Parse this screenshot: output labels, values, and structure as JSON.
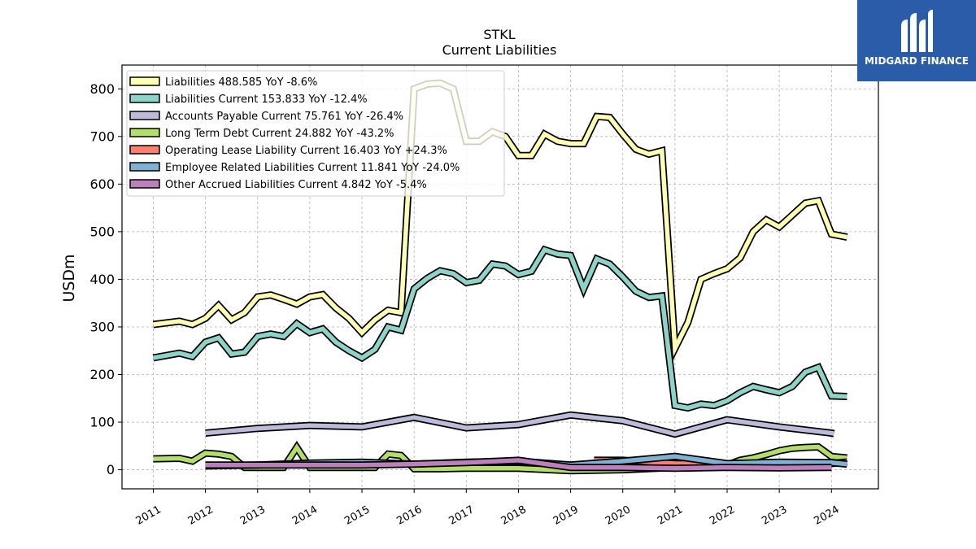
{
  "chart_data": {
    "type": "line",
    "title": "STKL",
    "subtitle": "Current  Liabilities",
    "ylabel": "USDm",
    "xlabel": "",
    "ylim": [
      -40,
      850
    ],
    "xlim": [
      2010.4,
      2024.9
    ],
    "yticks": [
      0,
      100,
      200,
      300,
      400,
      500,
      600,
      700,
      800
    ],
    "xticks": [
      "2011",
      "2012",
      "2013",
      "2014",
      "2015",
      "2016",
      "2017",
      "2018",
      "2019",
      "2020",
      "2021",
      "2022",
      "2023",
      "2024"
    ],
    "grid": true,
    "legend_position": "top-left",
    "series": [
      {
        "name": "Liabilities",
        "legend": "Liabilities  488.585 YoY -8.6%",
        "color": "#ffffb3",
        "points": [
          [
            2011.0,
            305
          ],
          [
            2011.5,
            312
          ],
          [
            2011.75,
            305
          ],
          [
            2012.0,
            318
          ],
          [
            2012.25,
            345
          ],
          [
            2012.5,
            315
          ],
          [
            2012.75,
            330
          ],
          [
            2013.0,
            363
          ],
          [
            2013.25,
            367
          ],
          [
            2013.5,
            358
          ],
          [
            2013.75,
            348
          ],
          [
            2014.0,
            363
          ],
          [
            2014.25,
            368
          ],
          [
            2014.5,
            340
          ],
          [
            2014.75,
            318
          ],
          [
            2015.0,
            288
          ],
          [
            2015.25,
            315
          ],
          [
            2015.5,
            335
          ],
          [
            2015.75,
            330
          ],
          [
            2016.0,
            800
          ],
          [
            2016.25,
            810
          ],
          [
            2016.5,
            812
          ],
          [
            2016.75,
            800
          ],
          [
            2017.0,
            690
          ],
          [
            2017.25,
            690
          ],
          [
            2017.5,
            710
          ],
          [
            2017.75,
            700
          ],
          [
            2018.0,
            660
          ],
          [
            2018.25,
            660
          ],
          [
            2018.5,
            705
          ],
          [
            2018.75,
            690
          ],
          [
            2019.0,
            685
          ],
          [
            2019.25,
            685
          ],
          [
            2019.5,
            742
          ],
          [
            2019.75,
            740
          ],
          [
            2020.0,
            705
          ],
          [
            2020.25,
            673
          ],
          [
            2020.5,
            663
          ],
          [
            2020.75,
            670
          ],
          [
            2021.0,
            255
          ],
          [
            2021.25,
            310
          ],
          [
            2021.5,
            400
          ],
          [
            2021.75,
            412
          ],
          [
            2022.0,
            422
          ],
          [
            2022.25,
            445
          ],
          [
            2022.5,
            500
          ],
          [
            2022.75,
            525
          ],
          [
            2023.0,
            510
          ],
          [
            2023.25,
            535
          ],
          [
            2023.5,
            560
          ],
          [
            2023.75,
            565
          ],
          [
            2024.0,
            495
          ],
          [
            2024.3,
            488.585
          ]
        ]
      },
      {
        "name": "Liabilities Current",
        "legend": "Liabilities Current  153.833 YoY -12.4%",
        "color": "#8dd3c7",
        "points": [
          [
            2011.0,
            235
          ],
          [
            2011.5,
            245
          ],
          [
            2011.75,
            238
          ],
          [
            2012.0,
            268
          ],
          [
            2012.25,
            277
          ],
          [
            2012.5,
            243
          ],
          [
            2012.75,
            247
          ],
          [
            2013.0,
            280
          ],
          [
            2013.25,
            285
          ],
          [
            2013.5,
            280
          ],
          [
            2013.75,
            307
          ],
          [
            2014.0,
            288
          ],
          [
            2014.25,
            296
          ],
          [
            2014.5,
            268
          ],
          [
            2014.75,
            250
          ],
          [
            2015.0,
            235
          ],
          [
            2015.25,
            253
          ],
          [
            2015.5,
            300
          ],
          [
            2015.75,
            293
          ],
          [
            2016.0,
            380
          ],
          [
            2016.25,
            402
          ],
          [
            2016.5,
            418
          ],
          [
            2016.75,
            412
          ],
          [
            2017.0,
            393
          ],
          [
            2017.25,
            398
          ],
          [
            2017.5,
            432
          ],
          [
            2017.75,
            428
          ],
          [
            2018.0,
            410
          ],
          [
            2018.25,
            417
          ],
          [
            2018.5,
            462
          ],
          [
            2018.75,
            453
          ],
          [
            2019.0,
            450
          ],
          [
            2019.25,
            380
          ],
          [
            2019.5,
            443
          ],
          [
            2019.75,
            432
          ],
          [
            2020.0,
            405
          ],
          [
            2020.25,
            375
          ],
          [
            2020.5,
            362
          ],
          [
            2020.75,
            365
          ],
          [
            2021.0,
            135
          ],
          [
            2021.25,
            130
          ],
          [
            2021.5,
            138
          ],
          [
            2021.75,
            135
          ],
          [
            2022.0,
            145
          ],
          [
            2022.25,
            162
          ],
          [
            2022.5,
            175
          ],
          [
            2022.75,
            168
          ],
          [
            2023.0,
            162
          ],
          [
            2023.25,
            175
          ],
          [
            2023.5,
            205
          ],
          [
            2023.75,
            215
          ],
          [
            2024.0,
            155
          ],
          [
            2024.3,
            153.833
          ]
        ]
      },
      {
        "name": "Accounts Payable Current",
        "legend": "Accounts Payable Current  75.761 YoY -26.4%",
        "color": "#bebada",
        "points": [
          [
            2012.0,
            77
          ],
          [
            2013.0,
            87
          ],
          [
            2014.0,
            93
          ],
          [
            2015.0,
            90
          ],
          [
            2016.0,
            110
          ],
          [
            2017.0,
            88
          ],
          [
            2018.0,
            95
          ],
          [
            2019.0,
            115
          ],
          [
            2020.0,
            103
          ],
          [
            2021.0,
            75
          ],
          [
            2022.0,
            105
          ],
          [
            2023.0,
            90
          ],
          [
            2024.0,
            77
          ],
          [
            2024.05,
            75.761
          ]
        ]
      },
      {
        "name": "Long Term Debt Current",
        "legend": "Long Term Debt Current  24.882 YoY -43.2%",
        "color": "#b3de69",
        "points": [
          [
            2011.0,
            23
          ],
          [
            2011.5,
            24
          ],
          [
            2011.75,
            18
          ],
          [
            2012.0,
            35
          ],
          [
            2012.25,
            33
          ],
          [
            2012.5,
            28
          ],
          [
            2012.75,
            5
          ],
          [
            2013.0,
            5
          ],
          [
            2013.25,
            5
          ],
          [
            2013.5,
            5
          ],
          [
            2013.75,
            47
          ],
          [
            2014.0,
            5
          ],
          [
            2014.25,
            5
          ],
          [
            2014.5,
            5
          ],
          [
            2014.75,
            5
          ],
          [
            2015.0,
            5
          ],
          [
            2015.25,
            5
          ],
          [
            2015.5,
            33
          ],
          [
            2015.75,
            30
          ],
          [
            2016.0,
            2
          ],
          [
            2016.5,
            2
          ],
          [
            2017.0,
            3
          ],
          [
            2018.0,
            3
          ],
          [
            2019.0,
            -2
          ],
          [
            2020.0,
            0
          ],
          [
            2021.0,
            5
          ],
          [
            2021.5,
            6
          ],
          [
            2022.0,
            10
          ],
          [
            2022.25,
            20
          ],
          [
            2022.5,
            25
          ],
          [
            2022.75,
            32
          ],
          [
            2023.0,
            40
          ],
          [
            2023.25,
            45
          ],
          [
            2023.5,
            47
          ],
          [
            2023.75,
            48
          ],
          [
            2024.0,
            28
          ],
          [
            2024.3,
            24.882
          ]
        ]
      },
      {
        "name": "Operating Lease Liability Current",
        "legend": "Operating Lease Liability Current  16.403 YoY +24.3%",
        "color": "#fb8072",
        "points": [
          [
            2019.45,
            20
          ],
          [
            2020.0,
            20
          ],
          [
            2021.0,
            13
          ],
          [
            2022.0,
            13
          ],
          [
            2023.0,
            13
          ],
          [
            2023.5,
            13
          ],
          [
            2024.0,
            13
          ],
          [
            2024.3,
            16.403
          ]
        ]
      },
      {
        "name": "Employee Related Liabilities Current",
        "legend": "Employee Related Liabilities Current  11.841 YoY -24.0%",
        "color": "#80b1d3",
        "points": [
          [
            2012.0,
            8
          ],
          [
            2013.0,
            10
          ],
          [
            2014.0,
            14
          ],
          [
            2015.0,
            16
          ],
          [
            2016.0,
            12
          ],
          [
            2017.0,
            16
          ],
          [
            2018.0,
            18
          ],
          [
            2019.0,
            10
          ],
          [
            2020.0,
            18
          ],
          [
            2021.0,
            28
          ],
          [
            2022.0,
            13
          ],
          [
            2023.0,
            16
          ],
          [
            2024.0,
            15
          ],
          [
            2024.3,
            11.841
          ]
        ]
      },
      {
        "name": "Other Accrued Liabilities Current",
        "legend": "Other Accrued Liabilities Current  4.842 YoY -5.4%",
        "color": "#bc80bd",
        "points": [
          [
            2012.0,
            10
          ],
          [
            2013.0,
            10
          ],
          [
            2014.0,
            10
          ],
          [
            2015.0,
            10
          ],
          [
            2016.0,
            12
          ],
          [
            2017.0,
            15
          ],
          [
            2018.0,
            20
          ],
          [
            2019.0,
            5
          ],
          [
            2020.0,
            5
          ],
          [
            2021.0,
            3
          ],
          [
            2022.0,
            5
          ],
          [
            2023.0,
            4
          ],
          [
            2024.0,
            4.842
          ]
        ]
      }
    ]
  },
  "logo": {
    "text": "MIDGARD FINANCE",
    "bg_color": "#2a5caa"
  }
}
